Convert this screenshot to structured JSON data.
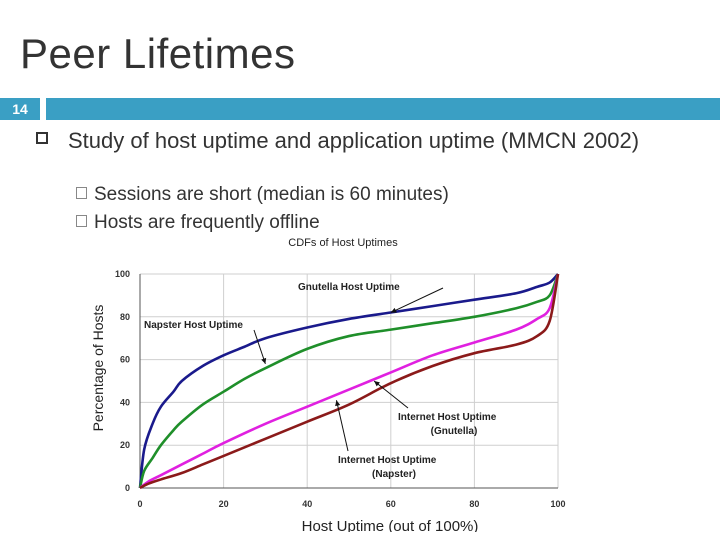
{
  "slide": {
    "title": "Peer Lifetimes",
    "number": "14",
    "bullet": "Study of host uptime and application uptime (MMCN 2002)",
    "subbullets": [
      "Sessions are short (median is 60 minutes)",
      "Hosts are frequently offline"
    ]
  },
  "chart_data": {
    "type": "line",
    "title": "CDFs of Host Uptimes",
    "xlabel": "Host Uptime (out of 100%)",
    "ylabel": "Percentage of Hosts",
    "xlim": [
      0,
      100
    ],
    "ylim": [
      0,
      100
    ],
    "xticks": [
      0,
      20,
      40,
      60,
      80,
      100
    ],
    "yticks": [
      0,
      20,
      40,
      60,
      80,
      100
    ],
    "grid": true,
    "series": [
      {
        "name": "Gnutella Host Uptime",
        "color": "#1a1a8c",
        "x": [
          0,
          1,
          3,
          5,
          8,
          10,
          15,
          20,
          25,
          30,
          40,
          50,
          60,
          70,
          80,
          90,
          95,
          98,
          100
        ],
        "y": [
          0,
          18,
          30,
          38,
          45,
          50,
          57,
          62,
          66,
          70,
          75,
          79,
          82,
          85,
          88,
          91,
          94,
          96,
          100
        ]
      },
      {
        "name": "Napster Host Uptime",
        "color": "#1f8f2a",
        "x": [
          0,
          1,
          3,
          5,
          8,
          10,
          15,
          20,
          25,
          30,
          40,
          50,
          60,
          70,
          80,
          90,
          95,
          98,
          100
        ],
        "y": [
          0,
          8,
          14,
          20,
          27,
          31,
          39,
          45,
          51,
          56,
          65,
          71,
          74,
          77,
          80,
          84,
          87,
          90,
          100
        ]
      },
      {
        "name": "Internet Host Uptime (Gnutella)",
        "color": "#e020e0",
        "x": [
          0,
          2,
          5,
          10,
          15,
          20,
          30,
          40,
          50,
          60,
          70,
          80,
          90,
          95,
          98,
          100
        ],
        "y": [
          0,
          3,
          6,
          11,
          16,
          21,
          30,
          38,
          46,
          54,
          62,
          68,
          74,
          79,
          84,
          100
        ]
      },
      {
        "name": "Internet Host Uptime (Napster)",
        "color": "#8b1a1a",
        "x": [
          0,
          2,
          5,
          10,
          15,
          20,
          30,
          40,
          50,
          60,
          70,
          80,
          90,
          95,
          98,
          100
        ],
        "y": [
          0,
          2,
          4,
          7,
          11,
          15,
          23,
          31,
          39,
          49,
          57,
          63,
          67,
          71,
          78,
          100
        ]
      }
    ],
    "annotations": [
      {
        "text": "Gnutella Host Uptime",
        "series": 0
      },
      {
        "text": "Napster Host Uptime",
        "series": 1
      },
      {
        "text": "Internet Host Uptime",
        "text2": "(Gnutella)",
        "series": 2
      },
      {
        "text": "Internet Host Uptime",
        "text2": "(Napster)",
        "series": 3
      }
    ]
  }
}
